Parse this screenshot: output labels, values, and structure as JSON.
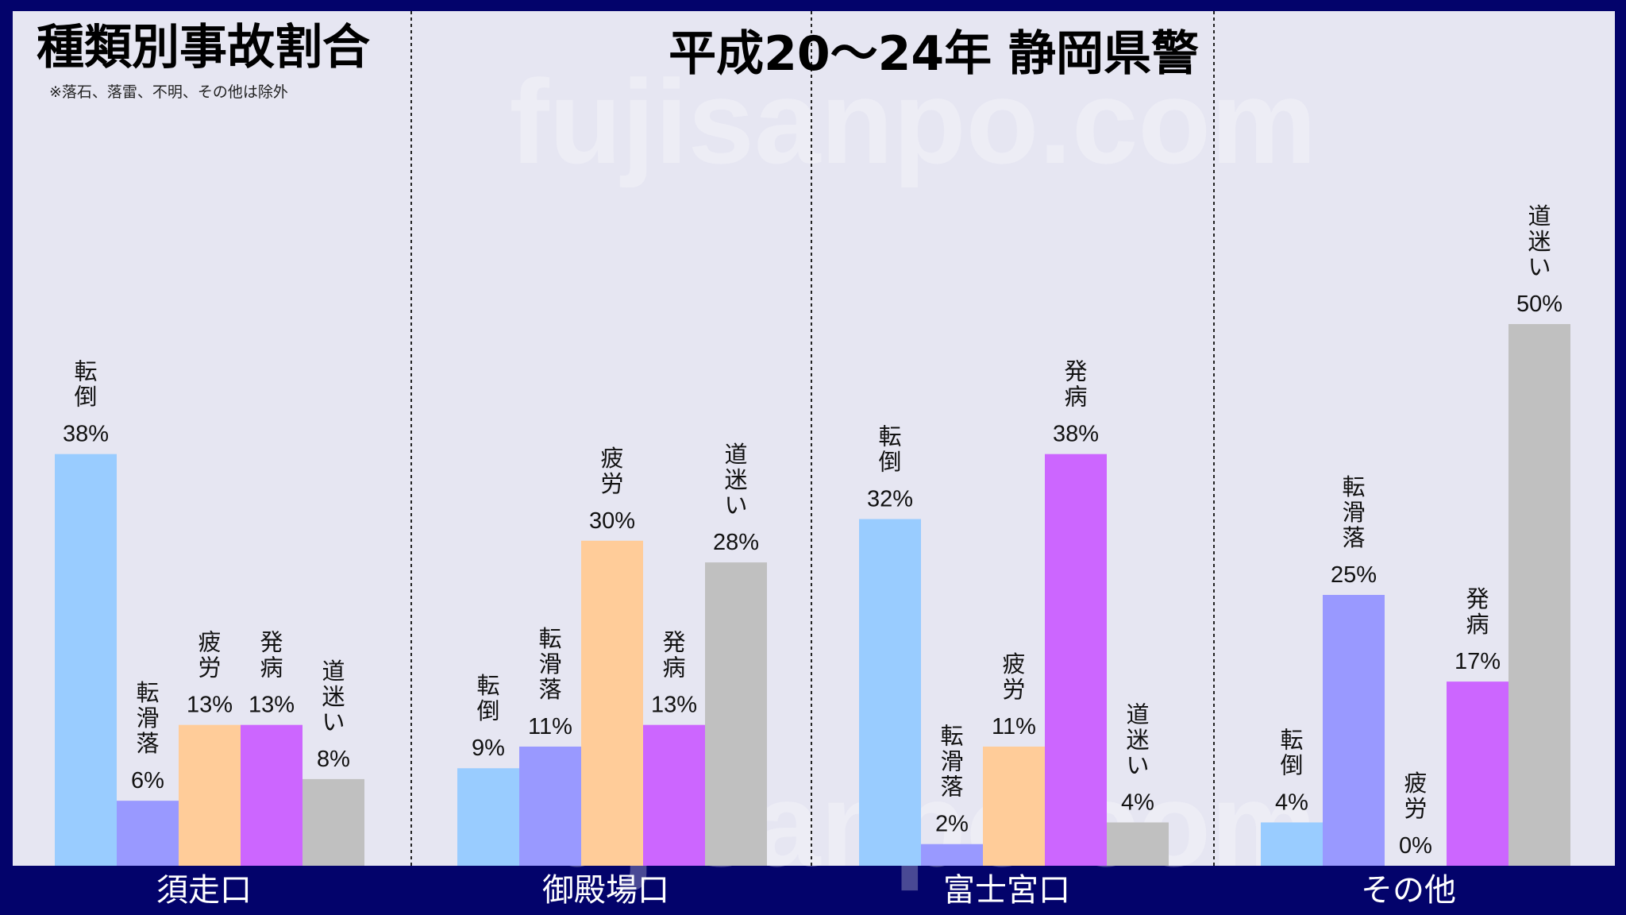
{
  "header": {
    "title_left": "種類別事故割合",
    "note": "※落石、落雷、不明、その他は除外",
    "title_right": "平成20～24年 静岡県警"
  },
  "watermark": {
    "top": "fujisanpo.com",
    "bottom": "fujisanpo.com"
  },
  "colors": {
    "転倒": "#99ccff",
    "転滑落": "#9999ff",
    "疲労": "#ffcc99",
    "発病": "#cc66ff",
    "道迷い": "#c0c0c0",
    "plot_bg": "#e6e6f2",
    "frame": "#03036b"
  },
  "chart_data": {
    "type": "bar",
    "title": "種類別事故割合",
    "subtitle": "平成20～24年 静岡県警",
    "ylim": [
      0,
      50
    ],
    "grid": false,
    "legend": "none",
    "categories": [
      "須走口",
      "御殿場口",
      "富士宮口",
      "その他"
    ],
    "series": [
      {
        "name": "転倒",
        "values": [
          38,
          9,
          32,
          4
        ]
      },
      {
        "name": "転滑落",
        "values": [
          6,
          11,
          2,
          25
        ]
      },
      {
        "name": "疲労",
        "values": [
          13,
          30,
          11,
          0
        ]
      },
      {
        "name": "発病",
        "values": [
          13,
          13,
          38,
          17
        ]
      },
      {
        "name": "道迷い",
        "values": [
          8,
          28,
          4,
          50
        ]
      }
    ],
    "value_suffix": "%"
  }
}
